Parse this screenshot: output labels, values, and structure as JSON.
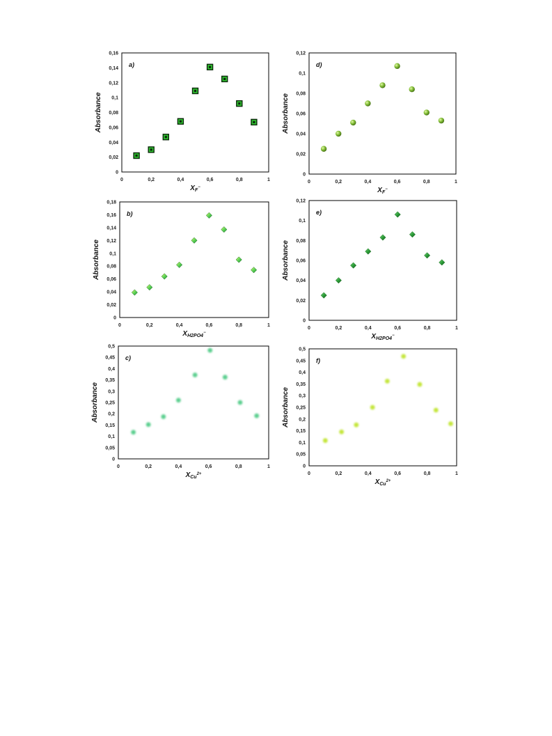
{
  "chart_data": [
    {
      "panel": "a)",
      "type": "scatter",
      "xlabel": {
        "main": "X",
        "sub": "F",
        "sup": "−"
      },
      "ylabel": "Absorbance",
      "xlim": [
        0,
        1
      ],
      "ylim": [
        0,
        0.16
      ],
      "xticks": [
        "0",
        "0,2",
        "0,4",
        "0,6",
        "0,8",
        "1"
      ],
      "yticks": [
        "0",
        "0,02",
        "0,04",
        "0,06",
        "0,08",
        "0,1",
        "0,12",
        "0,14",
        "0,16"
      ],
      "marker": "square",
      "color": "#2fbf2f",
      "x": [
        0.1,
        0.2,
        0.3,
        0.4,
        0.5,
        0.6,
        0.7,
        0.8,
        0.9
      ],
      "y": [
        0.022,
        0.03,
        0.047,
        0.068,
        0.109,
        0.141,
        0.125,
        0.092,
        0.067
      ]
    },
    {
      "panel": "d)",
      "type": "scatter",
      "xlabel": {
        "main": "X",
        "sub": "F",
        "sup": "−"
      },
      "ylabel": "Absorbance",
      "xlim": [
        0,
        1
      ],
      "ylim": [
        0,
        0.12
      ],
      "xticks": [
        "0",
        "0,2",
        "0,4",
        "0,6",
        "0,8",
        "1"
      ],
      "yticks": [
        "0",
        "0,02",
        "0,04",
        "0,06",
        "0,08",
        "0,1",
        "0,12"
      ],
      "marker": "sphere",
      "color": "#8cc63f",
      "x": [
        0.1,
        0.2,
        0.3,
        0.4,
        0.5,
        0.6,
        0.7,
        0.8,
        0.9
      ],
      "y": [
        0.025,
        0.04,
        0.051,
        0.07,
        0.088,
        0.107,
        0.084,
        0.061,
        0.053
      ]
    },
    {
      "panel": "b)",
      "type": "scatter",
      "xlabel": {
        "main": "X",
        "sub": "H2PO4",
        "sup": "−"
      },
      "ylabel": "Absorbance",
      "xlim": [
        0,
        1
      ],
      "ylim": [
        0,
        0.18
      ],
      "xticks": [
        "0",
        "0,2",
        "0,4",
        "0,6",
        "0,8",
        "1"
      ],
      "yticks": [
        "0",
        "0,02",
        "0,04",
        "0,06",
        "0,08",
        "0,1",
        "0,12",
        "0,14",
        "0,16",
        "0,18"
      ],
      "marker": "diamond",
      "color": "#5fd45a",
      "x": [
        0.1,
        0.2,
        0.3,
        0.4,
        0.5,
        0.6,
        0.7,
        0.8,
        0.9
      ],
      "y": [
        0.039,
        0.047,
        0.064,
        0.082,
        0.12,
        0.159,
        0.137,
        0.09,
        0.074
      ]
    },
    {
      "panel": "e)",
      "type": "scatter",
      "xlabel": {
        "main": "X",
        "sub": "H2PO4",
        "sup": "−"
      },
      "ylabel": "Absorbance",
      "xlim": [
        0,
        1
      ],
      "ylim": [
        0,
        0.12
      ],
      "xticks": [
        "0",
        "0,2",
        "0,4",
        "0,6",
        "0,8",
        "1"
      ],
      "yticks": [
        "0",
        "0,02",
        "0,04",
        "0,06",
        "0,08",
        "0,1",
        "0,12"
      ],
      "marker": "diamond",
      "color": "#2e9e3a",
      "x": [
        0.1,
        0.2,
        0.3,
        0.4,
        0.5,
        0.6,
        0.7,
        0.8,
        0.9
      ],
      "y": [
        0.025,
        0.04,
        0.055,
        0.069,
        0.083,
        0.106,
        0.086,
        0.065,
        0.058
      ]
    },
    {
      "panel": "c)",
      "type": "scatter",
      "xlabel": {
        "main": "X",
        "sub": "Cu",
        "sup": "2+"
      },
      "ylabel": "Absorbance",
      "xlim": [
        0,
        1
      ],
      "ylim": [
        0,
        0.5
      ],
      "xticks": [
        "0",
        "0,2",
        "0,4",
        "0,6",
        "0,8",
        "1"
      ],
      "yticks": [
        "0",
        "0,05",
        "0,1",
        "0,15",
        "0,2",
        "0,25",
        "0,3",
        "0,35",
        "0,4",
        "0,45",
        "0,5"
      ],
      "marker": "blur",
      "color": "#5ccf8f",
      "x": [
        0.1,
        0.2,
        0.3,
        0.4,
        0.51,
        0.61,
        0.71,
        0.81,
        0.92
      ],
      "y": [
        0.118,
        0.152,
        0.187,
        0.26,
        0.372,
        0.481,
        0.362,
        0.25,
        0.191
      ]
    },
    {
      "panel": "f)",
      "type": "scatter",
      "xlabel": {
        "main": "X",
        "sub": "Cu",
        "sup": "2+"
      },
      "ylabel": "Absorbance",
      "xlim": [
        0,
        1
      ],
      "ylim": [
        0,
        0.5
      ],
      "xticks": [
        "0",
        "0,2",
        "0,4",
        "0,6",
        "0,8",
        "1"
      ],
      "yticks": [
        "0",
        "0,05",
        "0,1",
        "0,15",
        "0,2",
        "0,25",
        "0,3",
        "0,35",
        "0,4",
        "0,45",
        "0,5"
      ],
      "marker": "blur",
      "color": "#c4e63a",
      "x": [
        0.11,
        0.22,
        0.32,
        0.43,
        0.53,
        0.64,
        0.75,
        0.86,
        0.96
      ],
      "y": [
        0.108,
        0.145,
        0.175,
        0.25,
        0.362,
        0.468,
        0.348,
        0.238,
        0.18
      ]
    }
  ]
}
